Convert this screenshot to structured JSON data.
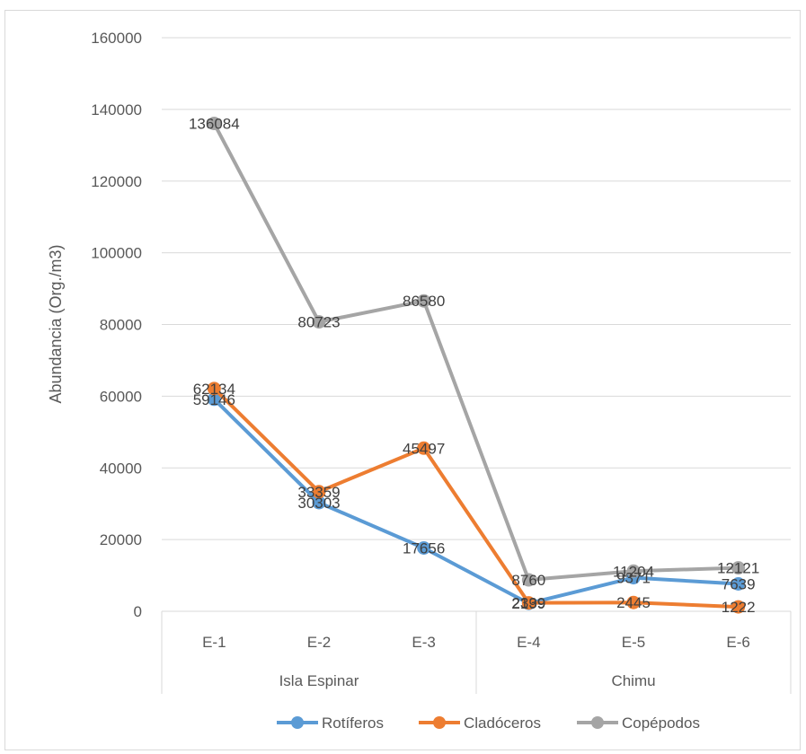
{
  "chart_data": {
    "type": "line",
    "ylabel": "Abundancia (Org./m3)",
    "ylim": [
      0,
      160000
    ],
    "yticks": [
      0,
      20000,
      40000,
      60000,
      80000,
      100000,
      120000,
      140000,
      160000
    ],
    "categories": [
      "E-1",
      "E-2",
      "E-3",
      "E-4",
      "E-5",
      "E-6"
    ],
    "groups": [
      {
        "label": "Isla Espinar",
        "categories": [
          "E-1",
          "E-2",
          "E-3"
        ]
      },
      {
        "label": "Chimu",
        "categories": [
          "E-4",
          "E-5",
          "E-6"
        ]
      }
    ],
    "series": [
      {
        "name": "Rotíferos",
        "color": "#5b9bd5",
        "values": [
          59146,
          30303,
          17656,
          2199,
          9371,
          7639
        ]
      },
      {
        "name": "Cladóceros",
        "color": "#ed7d31",
        "values": [
          62134,
          33359,
          45497,
          2339,
          2445,
          1222
        ]
      },
      {
        "name": "Copépodos",
        "color": "#a5a5a5",
        "values": [
          136084,
          80723,
          86580,
          8760,
          11204,
          12121
        ]
      }
    ],
    "grid": true,
    "legend": "bottom"
  }
}
